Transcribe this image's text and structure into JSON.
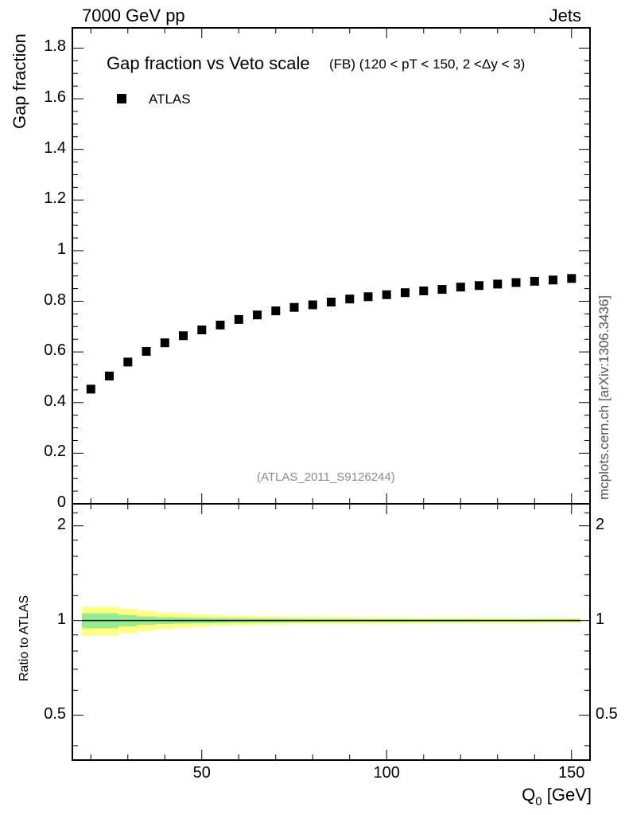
{
  "header": {
    "left": "7000 GeV pp",
    "right": "Jets"
  },
  "plot": {
    "title": "Gap fraction vs Veto scale",
    "subtitle": "(FB) (120 < pT < 150, 2 <Δy < 3)",
    "reference": "(ATLAS_2011_S9126244)",
    "side_label": "mcplots.cern.ch [arXiv:1306.3436]"
  },
  "axes": {
    "ylabel_main": "Gap fraction",
    "ylabel_ratio": "Ratio to ATLAS",
    "xlabel_main": "Q",
    "xlabel_sub": "0",
    "xlabel_unit": " [GeV]"
  },
  "legend": {
    "series": "ATLAS"
  },
  "colors": {
    "marker": "#000000",
    "band_inner": "#90ee90",
    "band_outer": "#ffff80",
    "ratio_line": "#000000"
  },
  "chart_data": [
    {
      "type": "scatter",
      "xlim": [
        15,
        155
      ],
      "ylim": [
        0,
        1.88
      ],
      "yticks": [
        0,
        0.2,
        0.4,
        0.6,
        0.8,
        1,
        1.2,
        1.4,
        1.6,
        1.8
      ],
      "ytick_labels": [
        "0",
        "0.2",
        "0.4",
        "0.6",
        "0.8",
        "1",
        "1.2",
        "1.4",
        "1.6",
        "1.8"
      ],
      "series": [
        {
          "name": "ATLAS",
          "x": [
            20,
            25,
            30,
            35,
            40,
            45,
            50,
            55,
            60,
            65,
            70,
            75,
            80,
            85,
            90,
            95,
            100,
            105,
            110,
            115,
            120,
            125,
            130,
            135,
            140,
            145,
            150
          ],
          "y": [
            0.453,
            0.505,
            0.56,
            0.602,
            0.636,
            0.664,
            0.687,
            0.706,
            0.728,
            0.746,
            0.762,
            0.776,
            0.786,
            0.797,
            0.809,
            0.818,
            0.826,
            0.834,
            0.841,
            0.847,
            0.856,
            0.862,
            0.868,
            0.874,
            0.879,
            0.884,
            0.89
          ]
        }
      ]
    },
    {
      "type": "area",
      "xlim": [
        15,
        155
      ],
      "ylim": [
        0.36,
        2.35
      ],
      "yscale": "log",
      "yticks": [
        0.5,
        1,
        2
      ],
      "ytick_labels": [
        "0.5",
        "1",
        "2"
      ],
      "xticks": [
        50,
        100,
        150
      ],
      "xtick_labels": [
        "50",
        "100",
        "150"
      ],
      "reference_line": 1,
      "x": [
        17.5,
        22.5,
        27.5,
        32.5,
        37.5,
        42.5,
        47.5,
        52.5,
        57.5,
        62.5,
        67.5,
        72.5,
        77.5,
        82.5,
        87.5,
        92.5,
        97.5,
        102.5,
        107.5,
        112.5,
        117.5,
        122.5,
        127.5,
        132.5,
        137.5,
        142.5,
        147.5,
        152.5
      ],
      "stat_band": [
        0.055,
        0.055,
        0.04,
        0.03,
        0.025,
        0.022,
        0.02,
        0.018,
        0.016,
        0.015,
        0.014,
        0.013,
        0.012,
        0.011,
        0.011,
        0.01,
        0.01,
        0.01,
        0.009,
        0.009,
        0.009,
        0.008,
        0.008,
        0.008,
        0.008,
        0.008,
        0.008,
        0.008
      ],
      "total_band": [
        0.105,
        0.105,
        0.09,
        0.075,
        0.06,
        0.052,
        0.045,
        0.038,
        0.034,
        0.032,
        0.03,
        0.028,
        0.027,
        0.026,
        0.025,
        0.024,
        0.023,
        0.022,
        0.022,
        0.021,
        0.021,
        0.02,
        0.02,
        0.02,
        0.019,
        0.019,
        0.019,
        0.019
      ]
    }
  ]
}
